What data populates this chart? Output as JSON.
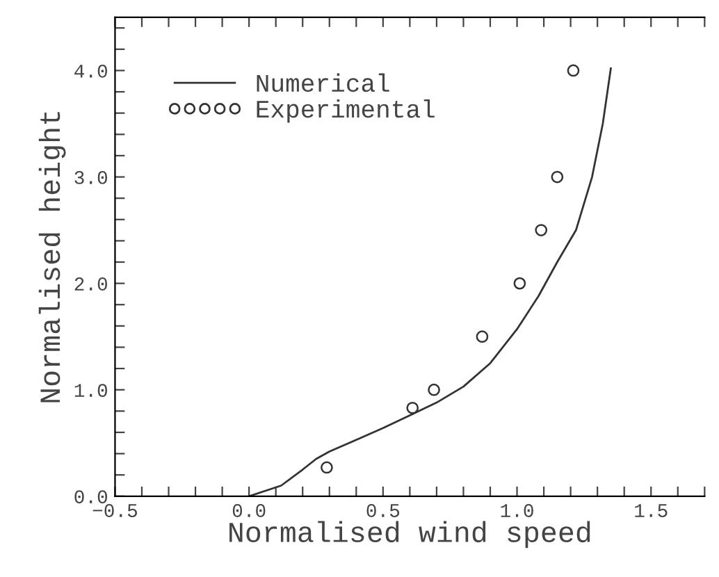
{
  "chart_data": {
    "type": "line",
    "xlabel": "Normalised wind speed",
    "ylabel": "Normalised height",
    "xlim": [
      -0.5,
      1.7
    ],
    "ylim": [
      0,
      4.5
    ],
    "xticks": [
      {
        "value": -0.5,
        "label": "−0.5"
      },
      {
        "value": -0.4,
        "label": null
      },
      {
        "value": -0.3,
        "label": null
      },
      {
        "value": -0.2,
        "label": null
      },
      {
        "value": -0.1,
        "label": null
      },
      {
        "value": 0,
        "label": "0.0"
      },
      {
        "value": 0.1,
        "label": null
      },
      {
        "value": 0.2,
        "label": null
      },
      {
        "value": 0.3,
        "label": null
      },
      {
        "value": 0.4,
        "label": null
      },
      0.5,
      {
        "value": 0.6,
        "label": null
      },
      {
        "value": 0.7,
        "label": null
      },
      {
        "value": 0.8,
        "label": null
      },
      {
        "value": 0.9,
        "label": null
      },
      {
        "value": 1,
        "label": "1.0"
      },
      {
        "value": 1.1,
        "label": null
      },
      {
        "value": 1.2,
        "label": null
      },
      {
        "value": 1.3,
        "label": null
      },
      {
        "value": 1.4,
        "label": null
      },
      1.5,
      {
        "value": 1.6,
        "label": null
      },
      {
        "value": 1.7,
        "label": null
      }
    ],
    "yticks": [
      {
        "value": 0,
        "label": "0.0"
      },
      {
        "value": 0.2,
        "label": null
      },
      {
        "value": 0.4,
        "label": null
      },
      {
        "value": 0.6,
        "label": null
      },
      {
        "value": 0.8,
        "label": null
      },
      {
        "value": 1,
        "label": "1.0"
      },
      {
        "value": 1.2,
        "label": null
      },
      {
        "value": 1.4,
        "label": null
      },
      {
        "value": 1.6,
        "label": null
      },
      {
        "value": 1.8,
        "label": null
      },
      {
        "value": 2,
        "label": "2.0"
      },
      {
        "value": 2.2,
        "label": null
      },
      {
        "value": 2.4,
        "label": null
      },
      {
        "value": 2.6,
        "label": null
      },
      {
        "value": 2.8,
        "label": null
      },
      {
        "value": 3,
        "label": "3.0"
      },
      {
        "value": 3.2,
        "label": null
      },
      {
        "value": 3.4,
        "label": null
      },
      {
        "value": 3.6,
        "label": null
      },
      {
        "value": 3.8,
        "label": null
      },
      {
        "value": 4,
        "label": "4.0"
      },
      {
        "value": 4.2,
        "label": null
      },
      {
        "value": 4.4,
        "label": null
      }
    ],
    "legend": "top left",
    "grid": false,
    "series": [
      {
        "name": "Numerical",
        "color": "#333333",
        "marker": "none",
        "line_style": "solid",
        "x": [
          0,
          0.12,
          0.2,
          0.25,
          0.3,
          0.4,
          0.5,
          0.6,
          0.7,
          0.8,
          0.9,
          1.0,
          1.08,
          1.15,
          1.22,
          1.28,
          1.32,
          1.35
        ],
        "values": [
          0,
          0.1,
          0.25,
          0.35,
          0.42,
          0.53,
          0.64,
          0.76,
          0.88,
          1.03,
          1.25,
          1.57,
          1.88,
          2.2,
          2.5,
          3.0,
          3.5,
          4.02
        ]
      },
      {
        "name": "Experimental",
        "type": "scatter",
        "color": "#333333",
        "marker": "circle",
        "x": [
          0.29,
          0.61,
          0.69,
          0.87,
          1.01,
          1.09,
          1.15,
          1.21
        ],
        "values": [
          0.27,
          0.83,
          1.0,
          1.5,
          2.0,
          2.5,
          3.0,
          4.0
        ]
      }
    ]
  }
}
